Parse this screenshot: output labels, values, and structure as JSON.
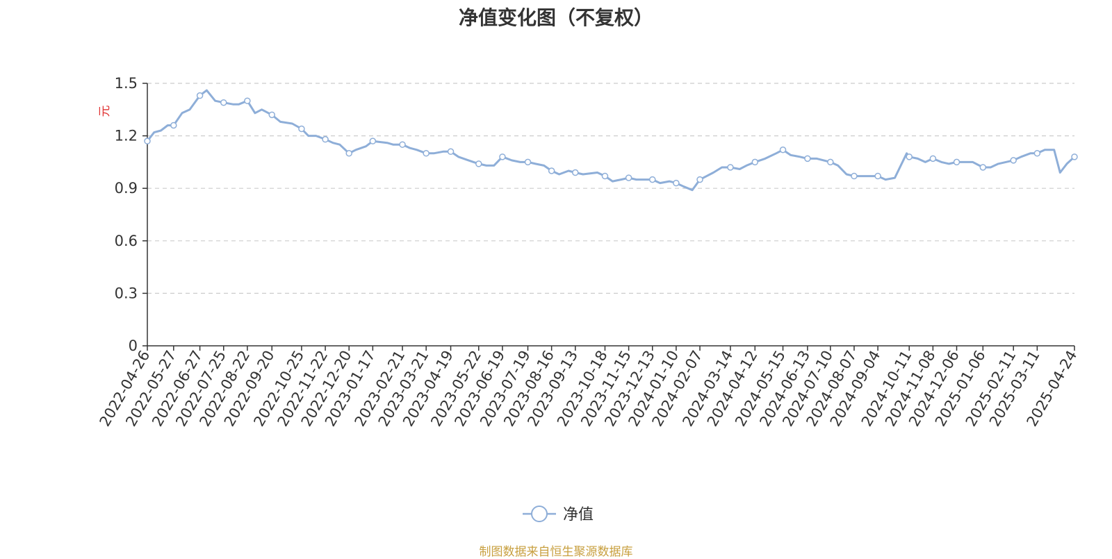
{
  "chart_data": {
    "type": "line",
    "title": "净值变化图（不复权）",
    "ylabel": "元",
    "ylim": [
      0,
      1.5
    ],
    "yticks": [
      0,
      0.3,
      0.6,
      0.9,
      1.2,
      1.5
    ],
    "grid": true,
    "legend_position": "bottom",
    "xtick_labels": [
      "2022-04-26",
      "2022-05-27",
      "2022-06-27",
      "2022-07-25",
      "2022-08-22",
      "2022-09-20",
      "2022-10-25",
      "2022-11-22",
      "2022-12-20",
      "2023-01-17",
      "2023-02-21",
      "2023-03-21",
      "2023-04-19",
      "2023-05-22",
      "2023-06-19",
      "2023-07-19",
      "2023-08-16",
      "2023-09-13",
      "2023-10-18",
      "2023-11-15",
      "2023-12-13",
      "2024-01-10",
      "2024-02-07",
      "2024-03-14",
      "2024-04-12",
      "2024-05-15",
      "2024-06-13",
      "2024-07-10",
      "2024-08-07",
      "2024-09-04",
      "2024-10-11",
      "2024-11-08",
      "2024-12-06",
      "2025-01-06",
      "2025-02-11",
      "2025-03-11",
      "2025-04-24"
    ],
    "series": [
      {
        "name": "净值",
        "color": "#8eaed8",
        "x": [
          "2022-04-26",
          "2022-05-04",
          "2022-05-12",
          "2022-05-20",
          "2022-05-27",
          "2022-06-06",
          "2022-06-15",
          "2022-06-27",
          "2022-07-05",
          "2022-07-15",
          "2022-07-25",
          "2022-08-05",
          "2022-08-12",
          "2022-08-22",
          "2022-08-31",
          "2022-09-08",
          "2022-09-20",
          "2022-09-30",
          "2022-10-14",
          "2022-10-25",
          "2022-11-02",
          "2022-11-11",
          "2022-11-22",
          "2022-12-01",
          "2022-12-09",
          "2022-12-20",
          "2022-12-28",
          "2023-01-09",
          "2023-01-17",
          "2023-02-03",
          "2023-02-10",
          "2023-02-21",
          "2023-03-02",
          "2023-03-10",
          "2023-03-21",
          "2023-03-30",
          "2023-04-10",
          "2023-04-19",
          "2023-04-28",
          "2023-05-10",
          "2023-05-22",
          "2023-05-31",
          "2023-06-09",
          "2023-06-19",
          "2023-06-30",
          "2023-07-10",
          "2023-07-19",
          "2023-07-28",
          "2023-08-07",
          "2023-08-16",
          "2023-08-25",
          "2023-09-05",
          "2023-09-13",
          "2023-09-22",
          "2023-10-09",
          "2023-10-18",
          "2023-10-27",
          "2023-11-06",
          "2023-11-15",
          "2023-11-24",
          "2023-12-04",
          "2023-12-13",
          "2023-12-22",
          "2024-01-02",
          "2024-01-10",
          "2024-01-19",
          "2024-01-29",
          "2024-02-07",
          "2024-02-23",
          "2024-03-04",
          "2024-03-14",
          "2024-03-25",
          "2024-04-02",
          "2024-04-12",
          "2024-04-24",
          "2024-05-07",
          "2024-05-15",
          "2024-05-24",
          "2024-06-04",
          "2024-06-13",
          "2024-06-24",
          "2024-07-02",
          "2024-07-10",
          "2024-07-19",
          "2024-07-29",
          "2024-08-07",
          "2024-08-16",
          "2024-08-26",
          "2024-09-04",
          "2024-09-13",
          "2024-09-24",
          "2024-10-08",
          "2024-10-11",
          "2024-10-21",
          "2024-10-30",
          "2024-11-08",
          "2024-11-18",
          "2024-11-27",
          "2024-12-06",
          "2024-12-16",
          "2024-12-25",
          "2025-01-06",
          "2025-01-15",
          "2025-01-24",
          "2025-02-11",
          "2025-02-20",
          "2025-03-03",
          "2025-03-11",
          "2025-03-20",
          "2025-03-31",
          "2025-04-07",
          "2025-04-15",
          "2025-04-24"
        ],
        "values": [
          1.17,
          1.22,
          1.23,
          1.26,
          1.26,
          1.33,
          1.35,
          1.43,
          1.46,
          1.4,
          1.39,
          1.38,
          1.38,
          1.4,
          1.33,
          1.35,
          1.32,
          1.28,
          1.27,
          1.24,
          1.2,
          1.2,
          1.18,
          1.16,
          1.15,
          1.1,
          1.12,
          1.14,
          1.17,
          1.16,
          1.15,
          1.15,
          1.13,
          1.12,
          1.1,
          1.1,
          1.11,
          1.11,
          1.08,
          1.06,
          1.04,
          1.03,
          1.03,
          1.08,
          1.06,
          1.05,
          1.05,
          1.04,
          1.03,
          1.0,
          0.98,
          1.0,
          0.99,
          0.98,
          0.99,
          0.97,
          0.94,
          0.95,
          0.96,
          0.95,
          0.95,
          0.95,
          0.93,
          0.94,
          0.93,
          0.91,
          0.89,
          0.95,
          0.99,
          1.02,
          1.02,
          1.01,
          1.03,
          1.05,
          1.07,
          1.1,
          1.12,
          1.09,
          1.08,
          1.07,
          1.07,
          1.06,
          1.05,
          1.03,
          0.98,
          0.97,
          0.97,
          0.97,
          0.97,
          0.95,
          0.96,
          1.1,
          1.08,
          1.07,
          1.05,
          1.07,
          1.05,
          1.04,
          1.05,
          1.05,
          1.05,
          1.02,
          1.02,
          1.04,
          1.06,
          1.08,
          1.1,
          1.1,
          1.12,
          1.12,
          0.99,
          1.04,
          1.08
        ]
      }
    ]
  },
  "source_note": "制图数据来自恒生聚源数据库"
}
